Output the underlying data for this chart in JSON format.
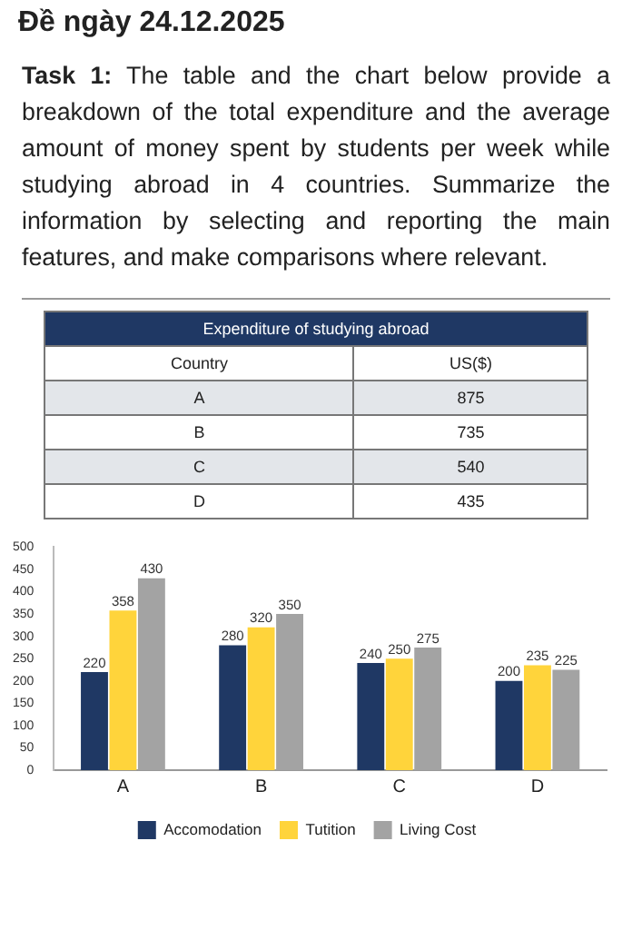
{
  "chart_data": [
    {
      "type": "other",
      "title": "Đề ngày 24.12.2025",
      "annotations": [
        "Task 1: The table and the chart below provide a breakdown of the total expenditure and the average amount of money spent by students per week while studying abroad in 4 countries. Summarize the information by selecting and reporting the main features, and make comparisons where relevant."
      ],
      "subtitle": "Expenditure of studying abroad",
      "xlabel": "Country",
      "ylabel": "US($)",
      "categories": [
        "A",
        "B",
        "C",
        "D"
      ],
      "values": [
        875,
        735,
        540,
        435
      ],
      "data_labels": true
    },
    {
      "type": "bar",
      "categories": [
        "A",
        "B",
        "C",
        "D"
      ],
      "series": [
        {
          "name": "Accomodation",
          "color": "#1f3864",
          "values": [
            220,
            280,
            240,
            200
          ]
        },
        {
          "name": "Tutition",
          "color": "#ffd43b",
          "values": [
            358,
            320,
            250,
            235
          ]
        },
        {
          "name": "Living Cost",
          "color": "#a3a3a3",
          "values": [
            430,
            350,
            275,
            225
          ]
        }
      ],
      "ylim": [
        0,
        500
      ],
      "yticks": [
        0,
        50,
        100,
        150,
        200,
        250,
        300,
        350,
        400,
        450,
        500
      ],
      "data_labels": true,
      "legend": "bottom",
      "grid": false
    }
  ]
}
